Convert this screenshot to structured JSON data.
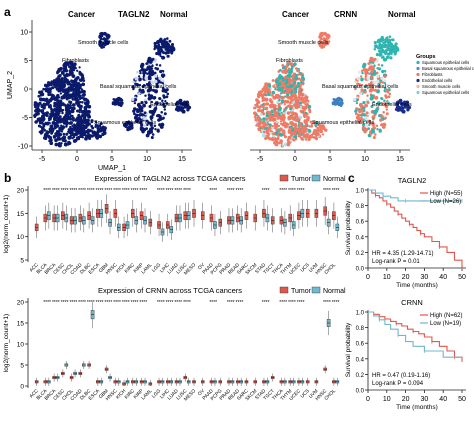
{
  "colors": {
    "dark_navy": "#0b1a6b",
    "tumor": "#e0574b",
    "normal": "#6fb8cf",
    "teal": "#2fb5b0",
    "salmon": "#ef7a66",
    "axis": "#222222"
  },
  "panels": {
    "a": {
      "letter": "a",
      "left_plot": {
        "labels": {
          "cancer": "Cancer",
          "gene": "TAGLN2",
          "normal": "Normal"
        },
        "clusters": [
          "Smooth muscle cells",
          "Fibroblasts",
          "Basal squamous epithelial cells",
          "Endothelial cells",
          "Squamous epithelial cells"
        ]
      },
      "right_plot": {
        "labels": {
          "cancer": "Cancer",
          "gene": "CRNN",
          "normal": "Normal"
        },
        "clusters": [
          "Smooth muscle cells",
          "Fibroblasts",
          "Basal squamous epithelial cells",
          "Endothelial cells",
          "Squamous epithelial cells"
        ],
        "legend_title": "Groups",
        "legend_items": [
          "Squamous epithelial cells",
          "Basal squamous epithelial cells",
          "Fibroblasts",
          "Endothelial cells",
          "Smooth muscle cells",
          "Squamous epithelial cells"
        ]
      },
      "x_axis_label": "UMAP_1",
      "y_axis_label": "UMAP_2",
      "x_ticks": [
        "-5",
        "0",
        "5",
        "10",
        "15"
      ],
      "y_ticks": [
        "10",
        "5",
        "0",
        "-5",
        "-10"
      ]
    },
    "b": {
      "letter": "b",
      "top": {
        "title": "Expression of TAGLN2 across TCGA cancers",
        "ylabel": "log2(norm_count+1)",
        "y_ticks": [
          "20",
          "15",
          "10",
          "5"
        ],
        "legend": [
          "Tumor",
          "Normal"
        ]
      },
      "bottom": {
        "title": "Expression of CRNN across TCGA cancers",
        "ylabel": "log2(norm_count+1)",
        "y_ticks": [
          "20",
          "15",
          "10",
          "5",
          "0"
        ],
        "legend": [
          "Tumor",
          "Normal"
        ]
      }
    },
    "c": {
      "letter": "c",
      "top": {
        "title": "TAGLN2",
        "ylabel": "Survival probability",
        "xlabel": "Time (months)",
        "legend": [
          "High (N=55)",
          "Low (N=26)"
        ],
        "annotation": [
          "HR = 4.35 (1.29-14.71)",
          "Log-rank P = 0.01"
        ],
        "x_ticks": [
          "0",
          "10",
          "20",
          "30",
          "40",
          "50"
        ],
        "y_ticks": [
          "1.0",
          "0.8",
          "0.6",
          "0.4",
          "0.2",
          "0.0"
        ]
      },
      "bottom": {
        "title": "CRNN",
        "ylabel": "Survival probability",
        "xlabel": "Time (months)",
        "legend": [
          "High (N=62)",
          "Low (N=19)"
        ],
        "annotation": [
          "HR = 0.47 (0.19-1.16)",
          "Log-rank P = 0.094"
        ],
        "x_ticks": [
          "0",
          "10",
          "20",
          "30",
          "40",
          "50"
        ],
        "y_ticks": [
          "1.0",
          "0.8",
          "0.6",
          "0.4",
          "0.2",
          "0.0"
        ]
      }
    }
  },
  "chart_data": [
    {
      "type": "box",
      "title": "Expression of TAGLN2 across TCGA cancers",
      "ylabel": "log2(norm_count+1)",
      "ylim": [
        5,
        20
      ],
      "categories": [
        "ACC",
        "BLCA",
        "BRCA",
        "CESC",
        "CHOL",
        "COAD",
        "DLBC",
        "ESCA",
        "GBM",
        "HNSC",
        "KICH",
        "KIRC",
        "KIRP",
        "LAML",
        "LGG",
        "LIHC",
        "LUAD",
        "LUSC",
        "MESO",
        "OV",
        "PAAD",
        "PCPG",
        "PRAD",
        "READ",
        "SARC",
        "SKCM",
        "STAD",
        "TGCT",
        "THCA",
        "THYM",
        "UCEC",
        "UCS",
        "UVM",
        "HNSC",
        "CHOL"
      ],
      "series": [
        {
          "name": "Tumor",
          "values": [
            12,
            14,
            14,
            14.5,
            13.5,
            14,
            14.5,
            15,
            16,
            15,
            12,
            15,
            14.5,
            13,
            12.5,
            12.5,
            14,
            14.5,
            15,
            14.5,
            14,
            13,
            13.5,
            14,
            14.5,
            14,
            15,
            13.5,
            13.5,
            14,
            14.5,
            15,
            15,
            15.5,
            14.5
          ]
        },
        {
          "name": "Normal",
          "values": [
            null,
            14.5,
            14,
            14,
            13.5,
            13.5,
            13.5,
            15,
            13,
            12,
            12.5,
            13.5,
            13.5,
            null,
            11,
            11.5,
            14,
            14.5,
            null,
            null,
            12.5,
            null,
            13.5,
            13.5,
            null,
            null,
            14,
            null,
            13,
            12.5,
            15,
            null,
            null,
            13,
            12
          ]
        }
      ]
    },
    {
      "type": "box",
      "title": "Expression of CRNN across TCGA cancers",
      "ylabel": "log2(norm_count+1)",
      "ylim": [
        0,
        20
      ],
      "categories": [
        "ACC",
        "BLCA",
        "BRCA",
        "CESC",
        "CHOL",
        "COAD",
        "DLBC",
        "ESCA",
        "GBM",
        "HNSC",
        "KICH",
        "KIRC",
        "KIRP",
        "LAML",
        "LGG",
        "LIHC",
        "LUAD",
        "LUSC",
        "MESO",
        "OV",
        "PAAD",
        "PCPG",
        "PRAD",
        "READ",
        "SARC",
        "SKCM",
        "STAD",
        "TGCT",
        "THCA",
        "THYM",
        "UCEC",
        "UCS",
        "UVM",
        "HNSC",
        "CHOL"
      ],
      "series": [
        {
          "name": "Tumor",
          "values": [
            1,
            1,
            2,
            3,
            2,
            3,
            5,
            1,
            4,
            1,
            0.5,
            1,
            1,
            0.5,
            1,
            1,
            1,
            2,
            1,
            1,
            1,
            1,
            1,
            1,
            1,
            1,
            1,
            2,
            1,
            1,
            1,
            1,
            1,
            4,
            1
          ]
        },
        {
          "name": "Normal",
          "values": [
            null,
            1,
            2,
            5,
            3,
            5,
            17,
            1,
            2,
            1,
            1,
            1,
            1,
            null,
            1,
            1,
            1,
            1,
            null,
            null,
            1,
            null,
            1,
            1,
            null,
            null,
            1,
            null,
            1,
            1,
            1,
            null,
            null,
            15,
            1
          ]
        }
      ]
    },
    {
      "type": "line",
      "title": "TAGLN2",
      "xlabel": "Time (months)",
      "ylabel": "Survival probability",
      "xlim": [
        0,
        50
      ],
      "ylim": [
        0,
        1
      ],
      "series": [
        {
          "name": "High (N=55)",
          "x": [
            0,
            2,
            4,
            6,
            8,
            10,
            12,
            14,
            16,
            18,
            20,
            22,
            24,
            26,
            28,
            30,
            34,
            38,
            42,
            46,
            50
          ],
          "y": [
            1.0,
            0.96,
            0.93,
            0.9,
            0.86,
            0.82,
            0.78,
            0.73,
            0.69,
            0.64,
            0.6,
            0.56,
            0.52,
            0.48,
            0.44,
            0.4,
            0.34,
            0.27,
            0.2,
            0.1,
            0.0
          ]
        },
        {
          "name": "Low (N=26)",
          "x": [
            0,
            4,
            8,
            12,
            16,
            20,
            30,
            40,
            50
          ],
          "y": [
            1.0,
            0.96,
            0.92,
            0.9,
            0.86,
            0.86,
            0.86,
            0.86,
            0.86
          ]
        }
      ]
    },
    {
      "type": "line",
      "title": "CRNN",
      "xlabel": "Time (months)",
      "ylabel": "Survival probability",
      "xlim": [
        0,
        50
      ],
      "ylim": [
        0,
        1
      ],
      "series": [
        {
          "name": "High (N=62)",
          "x": [
            0,
            3,
            6,
            9,
            12,
            15,
            18,
            21,
            24,
            27,
            30,
            34,
            38,
            42,
            46,
            50
          ],
          "y": [
            1.0,
            0.97,
            0.94,
            0.91,
            0.88,
            0.85,
            0.82,
            0.78,
            0.75,
            0.72,
            0.68,
            0.62,
            0.56,
            0.5,
            0.42,
            0.36
          ]
        },
        {
          "name": "Low (N=19)",
          "x": [
            0,
            3,
            6,
            9,
            12,
            16,
            20,
            24,
            30,
            40,
            50
          ],
          "y": [
            1.0,
            0.95,
            0.9,
            0.84,
            0.78,
            0.7,
            0.62,
            0.56,
            0.5,
            0.42,
            0.42
          ]
        }
      ]
    }
  ]
}
